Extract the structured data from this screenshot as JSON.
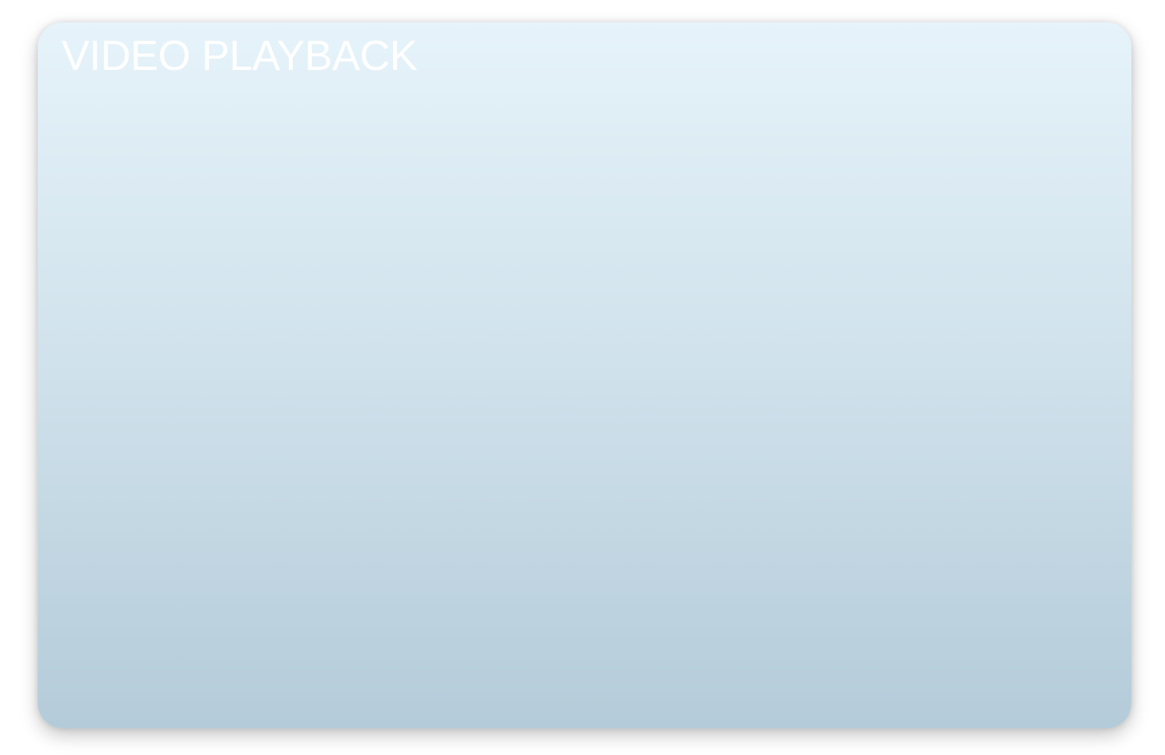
{
  "window": {
    "title": "VIDEO PLAYBACK"
  },
  "colors": {
    "panel_top": "#e6f3fa",
    "panel_bottom": "#b4cbd9",
    "title_text": "#ffffff"
  }
}
